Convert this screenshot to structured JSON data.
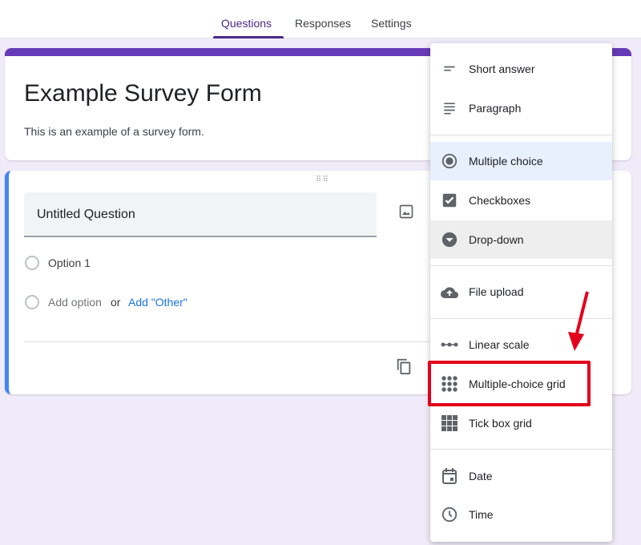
{
  "tabs": [
    {
      "label": "Questions",
      "active": true
    },
    {
      "label": "Responses"
    },
    {
      "label": "Settings"
    }
  ],
  "form": {
    "title": "Example Survey Form",
    "description": "This is an example of a survey form."
  },
  "question": {
    "title": "Untitled Question",
    "option1": "Option 1",
    "add_option": "Add option",
    "or": "or",
    "add_other": "Add \"Other\""
  },
  "menu": {
    "items": [
      {
        "label": "Short answer",
        "icon": "short-text-icon"
      },
      {
        "label": "Paragraph",
        "icon": "paragraph-icon"
      },
      {
        "label": "Multiple choice",
        "icon": "radio-icon",
        "selected": true
      },
      {
        "label": "Checkboxes",
        "icon": "checkbox-icon"
      },
      {
        "label": "Drop-down",
        "icon": "dropdown-icon",
        "hovered": true
      },
      {
        "label": "File upload",
        "icon": "cloud-upload-icon"
      },
      {
        "label": "Linear scale",
        "icon": "linear-scale-icon"
      },
      {
        "label": "Multiple-choice grid",
        "icon": "dot-grid-icon",
        "highlighted": true
      },
      {
        "label": "Tick box grid",
        "icon": "square-grid-icon"
      },
      {
        "label": "Date",
        "icon": "calendar-icon"
      },
      {
        "label": "Time",
        "icon": "clock-icon"
      }
    ]
  },
  "colors": {
    "accent": "#673ab7",
    "question_border": "#4285f4",
    "annotation": "#e3001b",
    "link": "#1a73e8"
  }
}
